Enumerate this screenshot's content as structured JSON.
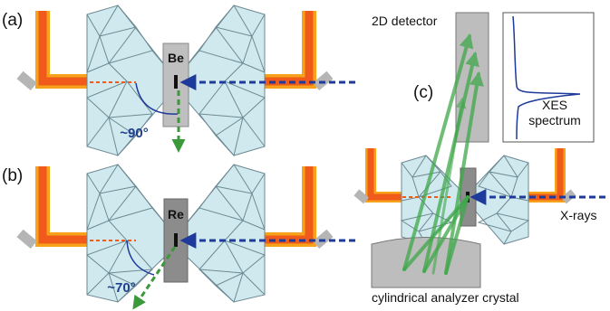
{
  "panels": {
    "a": {
      "label": "(a)",
      "sample": "Be",
      "angle": "~90°"
    },
    "b": {
      "label": "(b)",
      "sample": "Re",
      "angle": "~70°"
    },
    "c": {
      "label": "(c)"
    }
  },
  "annotations": {
    "detector": "2D detector",
    "spectrum_line1": "XES",
    "spectrum_line2": "spectrum",
    "xrays": "X-rays",
    "analyzer": "cylindrical analyzer crystal"
  },
  "colors": {
    "anvil_fill": "#cfe9ef",
    "anvil_stroke": "#6d8a93",
    "seat_orange": "#f05a1a",
    "seat_yellow": "#f6a21a",
    "beam_blue": "#1e3a9a",
    "green": "#3a9a3a",
    "gasket_gray": "#9a9a9a"
  }
}
